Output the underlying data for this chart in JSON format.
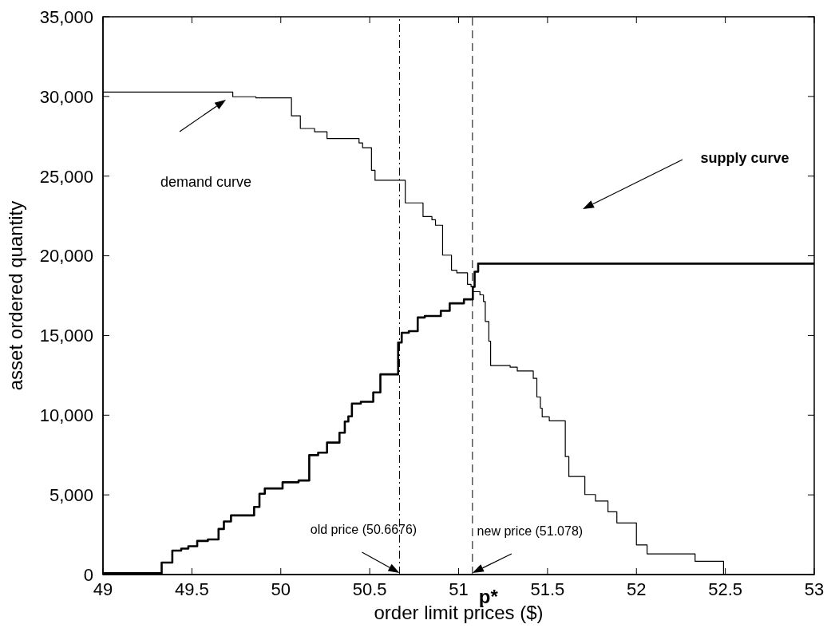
{
  "chart_data": {
    "type": "step",
    "xlabel": "order limit prices ($)",
    "ylabel": "asset ordered quantity",
    "xlim": [
      49,
      53
    ],
    "xticks": [
      49,
      49.5,
      50,
      50.5,
      51,
      51.5,
      52,
      52.5,
      53
    ],
    "ylim": [
      0,
      35000
    ],
    "yticks": [
      {
        "value": 0,
        "label": "0"
      },
      {
        "value": 5000,
        "label": "5,000"
      },
      {
        "value": 10000,
        "label": "10,000"
      },
      {
        "value": 15000,
        "label": "15,000"
      },
      {
        "value": 20000,
        "label": "20,000"
      },
      {
        "value": 25000,
        "label": "25,000"
      },
      {
        "value": 30000,
        "label": "30,000"
      },
      {
        "value": 35000,
        "label": "35,000"
      }
    ],
    "marker": "none",
    "series": [
      {
        "color": "#000000",
        "line_style": "solid",
        "x": [
          49,
          49.73,
          49.86,
          50.06,
          50.11,
          50.19,
          50.26,
          50.44,
          50.46,
          50.51,
          50.53,
          50.7,
          50.8,
          50.85,
          50.87,
          50.91,
          50.96,
          50.99,
          51.05,
          51.07,
          51.08,
          51.12,
          51.14,
          51.15,
          51.17,
          51.18,
          51.29,
          51.33,
          51.42,
          51.44,
          51.46,
          51.47,
          51.51,
          51.6,
          51.62,
          51.71,
          51.77,
          51.84,
          51.89,
          52,
          52.06,
          52.33,
          52.49
        ],
        "values": [
          30270,
          29980,
          29910,
          28780,
          27990,
          27780,
          27360,
          27080,
          26780,
          25370,
          24740,
          23320,
          22460,
          22260,
          21920,
          20040,
          19100,
          18930,
          18210,
          18050,
          17750,
          17550,
          17130,
          15880,
          14640,
          13110,
          13010,
          12770,
          12310,
          11140,
          10440,
          9900,
          9650,
          7400,
          6150,
          5020,
          4610,
          3940,
          3240,
          1860,
          1300,
          830,
          0
        ]
      },
      {
        "color": "#000000",
        "line_style": "solid",
        "x": [
          49,
          49.33,
          49.39,
          49.44,
          49.48,
          49.53,
          49.59,
          49.65,
          49.68,
          49.72,
          49.85,
          49.88,
          49.91,
          50.01,
          50.1,
          50.16,
          50.21,
          50.26,
          50.33,
          50.36,
          50.38,
          50.4,
          50.45,
          50.52,
          50.56,
          50.66,
          50.68,
          50.72,
          50.77,
          50.81,
          50.9,
          50.95,
          51.03,
          51.08,
          51.09,
          51.11,
          53
        ],
        "values": [
          80,
          750,
          1500,
          1630,
          1780,
          2110,
          2200,
          2860,
          3330,
          3710,
          4240,
          5070,
          5400,
          5790,
          5900,
          7490,
          7650,
          8280,
          8900,
          9600,
          9930,
          10730,
          10840,
          11430,
          12560,
          14560,
          15170,
          15270,
          16130,
          16220,
          16550,
          17020,
          17270,
          18050,
          19000,
          19510,
          19510
        ]
      }
    ],
    "ref_lines": [
      {
        "axis": "x",
        "value": 50.6676,
        "label": "old price (50.6676)",
        "color": "#000000",
        "line_style": "dashdot"
      },
      {
        "axis": "x",
        "value": 51.078,
        "label": "new price (51.078)",
        "color": "#000000",
        "line_style": "dashed"
      }
    ],
    "annotations": [
      "demand curve",
      "supply curve",
      {
        "text": "p*",
        "x": 51.078,
        "y": 0
      }
    ]
  }
}
